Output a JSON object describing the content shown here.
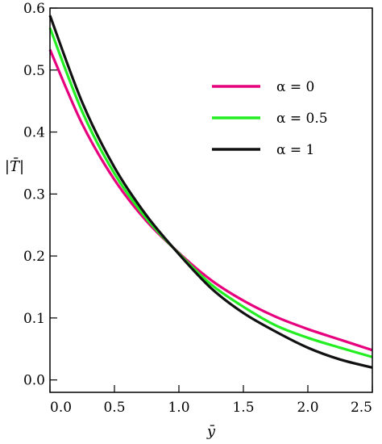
{
  "chart_data": {
    "type": "line",
    "title": "",
    "xlabel": "ȳ",
    "ylabel": "|T̄|",
    "xlim": [
      0,
      2.5
    ],
    "ylim": [
      -0.02,
      0.6
    ],
    "xticks": [
      0,
      0.5,
      1,
      1.5,
      2,
      2.5
    ],
    "xtick_labels": [
      "0.0",
      "0.5",
      "1.0",
      "1.5",
      "2.0",
      "2.5"
    ],
    "yticks": [
      0,
      0.1,
      0.2,
      0.3,
      0.4,
      0.5,
      0.6
    ],
    "ytick_labels": [
      "0.0",
      "0.1",
      "0.2",
      "0.3",
      "0.4",
      "0.5",
      "0.6"
    ],
    "grid": false,
    "legend_position": "top-right",
    "x": [
      0,
      0.25,
      0.5,
      0.75,
      1.0,
      1.25,
      1.5,
      1.75,
      2.0,
      2.25,
      2.5
    ],
    "series": [
      {
        "name": "α = 0",
        "color": "#e6007e",
        "values": [
          0.533,
          0.413,
          0.323,
          0.256,
          0.205,
          0.161,
          0.128,
          0.102,
          0.082,
          0.065,
          0.048
        ]
      },
      {
        "name": "α = 0.5",
        "color": "#22ee22",
        "values": [
          0.568,
          0.433,
          0.333,
          0.26,
          0.204,
          0.154,
          0.118,
          0.088,
          0.068,
          0.052,
          0.037
        ]
      },
      {
        "name": "α = 1",
        "color": "#111111",
        "values": [
          0.588,
          0.448,
          0.343,
          0.265,
          0.203,
          0.148,
          0.108,
          0.078,
          0.052,
          0.033,
          0.02
        ]
      }
    ]
  }
}
